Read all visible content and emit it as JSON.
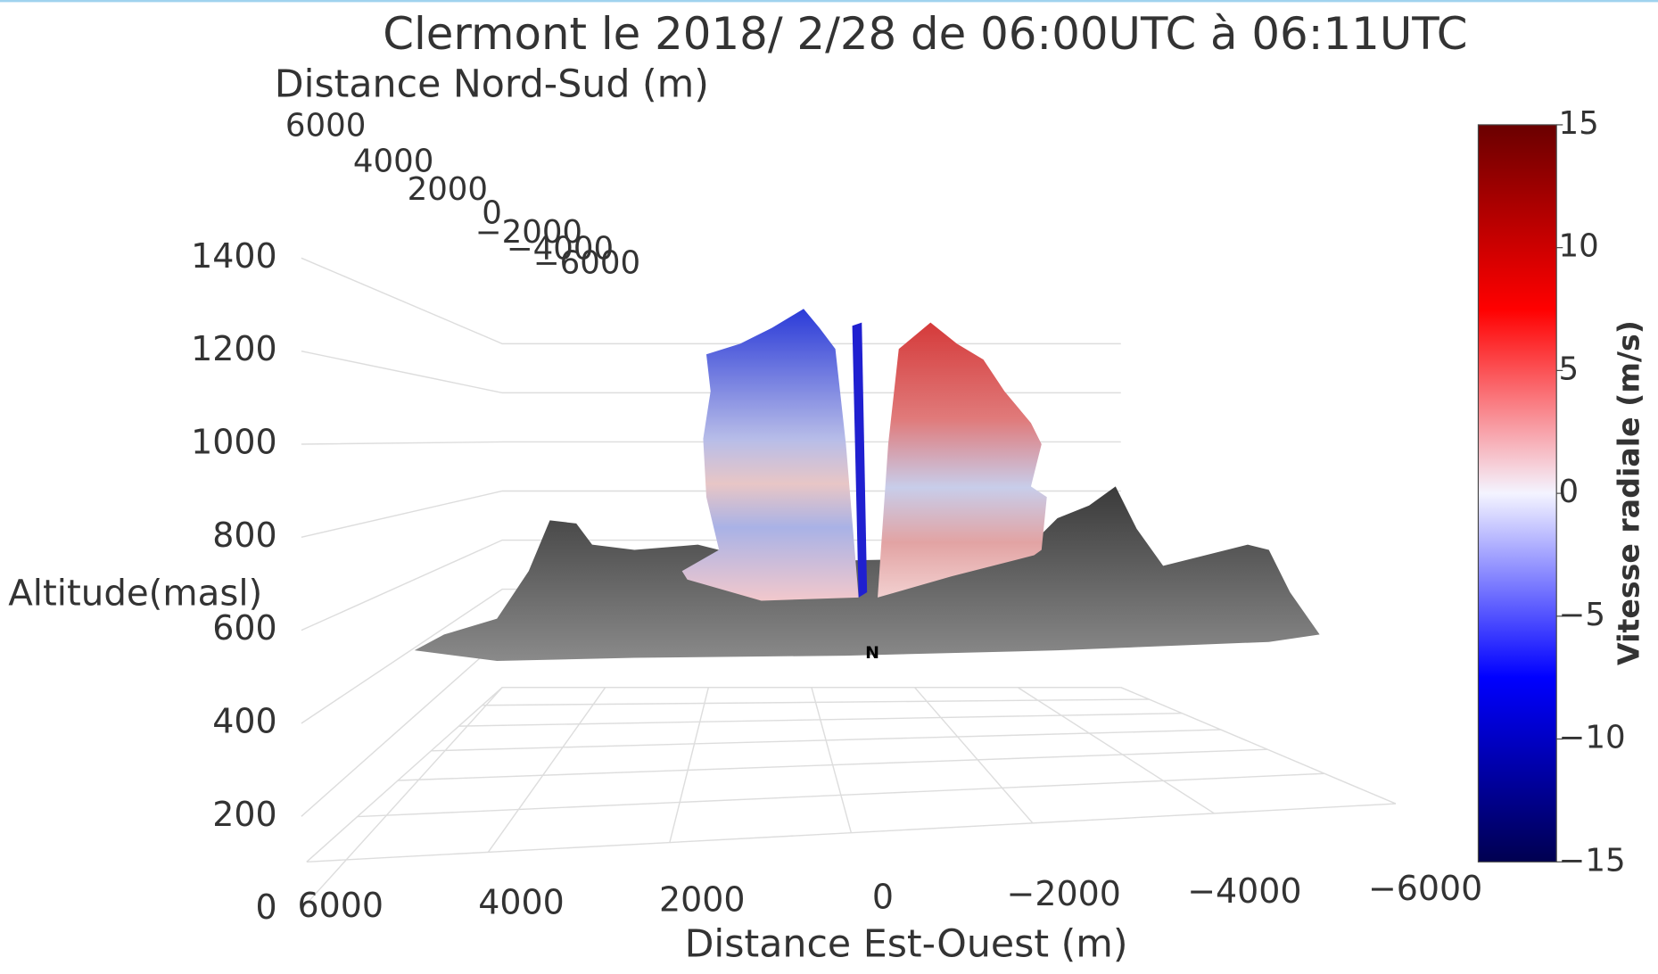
{
  "chart_data": {
    "type": "surface3d",
    "title": "Clermont le 2018/ 2/28 de 06:00UTC à 06:11UTC",
    "x_label": "Distance Est-Ouest (m)",
    "y_label": "Distance Nord-Sud (m)",
    "z_label": "Altitude(masl)",
    "xlim": [
      6000,
      -6000
    ],
    "xticks": [
      6000,
      4000,
      2000,
      0,
      {
        "value": -2000,
        "label": "−2000"
      },
      {
        "value": -4000,
        "label": "−4000"
      },
      {
        "value": -6000,
        "label": "−6000"
      }
    ],
    "ylim": [
      6000,
      -6000
    ],
    "yticks": [
      6000,
      4000,
      2000,
      0,
      {
        "value": -2000,
        "label": "−2000"
      },
      {
        "value": -4000,
        "label": "−4000"
      },
      {
        "value": -6000,
        "label": "−6000"
      }
    ],
    "zlim": [
      0,
      1400
    ],
    "zticks": [
      0,
      200,
      400,
      600,
      800,
      1000,
      1200,
      1400
    ],
    "colorbar": {
      "title": "Vitesse radiale (m/s)",
      "lim": [
        -15,
        15
      ],
      "ticks": [
        15,
        10,
        5,
        0,
        {
          "value": -5,
          "label": "−5"
        },
        {
          "value": -10,
          "label": "−10"
        },
        {
          "value": -15,
          "label": "−15"
        }
      ],
      "colorscale": [
        "#000050",
        "#0000ff",
        "#f4f4ff",
        "#ff0000",
        "#6a0000"
      ]
    },
    "annotation": "N",
    "grid": true
  }
}
